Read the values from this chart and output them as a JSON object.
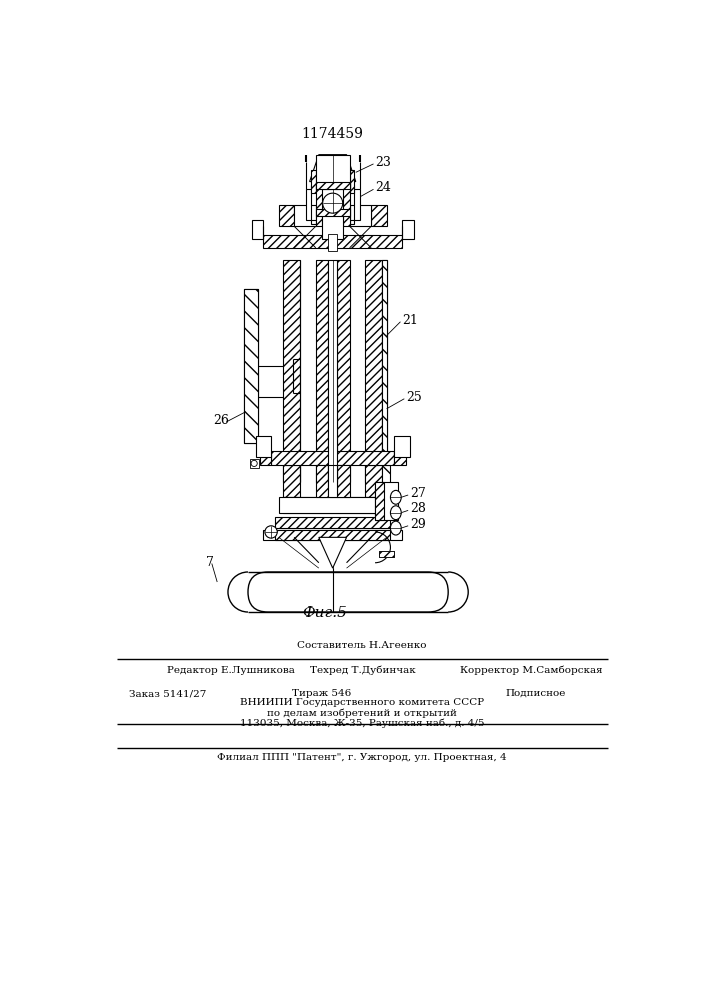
{
  "patent_number": "1174459",
  "fig_label": "Фиг.5",
  "bg_color": "#ffffff",
  "line_color": "#000000",
  "editor_line": "Редактор Е.Лушникова",
  "composer_line": "Составитель Н.Агеенко",
  "techred_line": "Техред Т.Дубинчак",
  "corrector_line": "Корректор М.Самборская",
  "order_line": "Заказ 5141/27",
  "tirazh_line": "Тираж 546",
  "podpisnoe_line": "Подписное",
  "vnipi_line1": "ВНИИПИ Государственного комитета СССР",
  "vnipi_line2": "по делам изобретений и открытий",
  "vnipi_line3": "113035, Москва, Ж-35, Раушская наб., д. 4/5",
  "filial_line": "Филиал ППП \"Патент\", г. Ужгород, ул. Проектная, 4"
}
